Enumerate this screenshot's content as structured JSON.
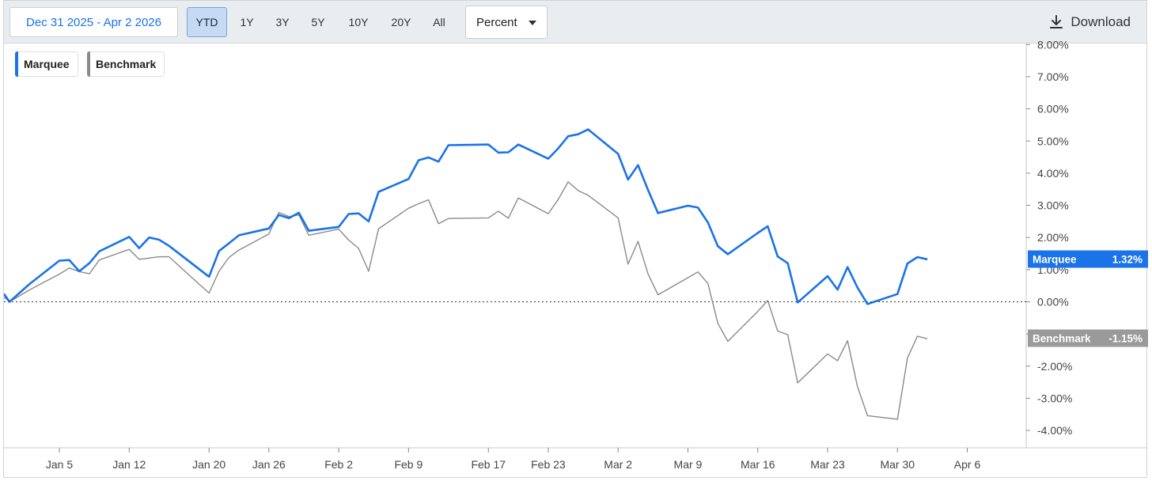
{
  "toolbar": {
    "date_range": "Dec 31 2025 - Apr 2 2026",
    "ranges": [
      "YTD",
      "1Y",
      "3Y",
      "5Y",
      "10Y",
      "20Y",
      "All"
    ],
    "active_range": "YTD",
    "mode": "Percent",
    "download_label": "Download"
  },
  "legend": {
    "items": [
      "Marquee",
      "Benchmark"
    ]
  },
  "colors": {
    "marquee": "#1a73e8",
    "benchmark": "#8a8a8a",
    "zero_line": "#333333"
  },
  "icons": [
    "download-icon",
    "caret-down-icon"
  ],
  "chart_data": {
    "type": "line",
    "title": "",
    "xlabel": "",
    "ylabel": "",
    "ylim": [
      -4.5,
      8.0
    ],
    "y_ticks": [
      -4,
      -3,
      -2,
      -1,
      0,
      1,
      2,
      3,
      4,
      5,
      6,
      7,
      8
    ],
    "y_tick_labels": [
      "-4.00%",
      "-3.00%",
      "-2.00%",
      "-1.00%",
      "0.00%",
      "1.00%",
      "2.00%",
      "3.00%",
      "4.00%",
      "5.00%",
      "6.00%",
      "7.00%",
      "8.00%"
    ],
    "x_ticks": [
      "2026-01-05",
      "2026-01-12",
      "2026-01-20",
      "2026-01-26",
      "2026-02-02",
      "2026-02-09",
      "2026-02-17",
      "2026-02-23",
      "2026-03-02",
      "2026-03-09",
      "2026-03-16",
      "2026-03-23",
      "2026-03-30",
      "2026-04-06"
    ],
    "x_tick_labels": [
      "Jan 5",
      "Jan 12",
      "Jan 20",
      "Jan 26",
      "Feb 2",
      "Feb 9",
      "Feb 17",
      "Feb 23",
      "Mar 2",
      "Mar 9",
      "Mar 16",
      "Mar 23",
      "Mar 30",
      "Apr 6"
    ],
    "zero_line": true,
    "legend_position": "top-left",
    "x": [
      "2025-12-31",
      "2026-01-02",
      "2026-01-05",
      "2026-01-06",
      "2026-01-07",
      "2026-01-08",
      "2026-01-09",
      "2026-01-12",
      "2026-01-13",
      "2026-01-14",
      "2026-01-15",
      "2026-01-16",
      "2026-01-20",
      "2026-01-21",
      "2026-01-22",
      "2026-01-23",
      "2026-01-26",
      "2026-01-27",
      "2026-01-28",
      "2026-01-29",
      "2026-01-30",
      "2026-02-02",
      "2026-02-03",
      "2026-02-04",
      "2026-02-05",
      "2026-02-06",
      "2026-02-09",
      "2026-02-10",
      "2026-02-11",
      "2026-02-12",
      "2026-02-13",
      "2026-02-17",
      "2026-02-18",
      "2026-02-19",
      "2026-02-20",
      "2026-02-23",
      "2026-02-24",
      "2026-02-25",
      "2026-02-26",
      "2026-02-27",
      "2026-03-02",
      "2026-03-03",
      "2026-03-04",
      "2026-03-05",
      "2026-03-06",
      "2026-03-09",
      "2026-03-10",
      "2026-03-11",
      "2026-03-12",
      "2026-03-13",
      "2026-03-16",
      "2026-03-17",
      "2026-03-18",
      "2026-03-19",
      "2026-03-20",
      "2026-03-23",
      "2026-03-24",
      "2026-03-25",
      "2026-03-26",
      "2026-03-27",
      "2026-03-30",
      "2026-03-31",
      "2026-04-01",
      "2026-04-02"
    ],
    "series": [
      {
        "name": "Marquee",
        "values": [
          0.0,
          0.55,
          1.28,
          1.3,
          0.95,
          1.2,
          1.57,
          2.02,
          1.67,
          2.0,
          1.93,
          1.74,
          0.78,
          1.58,
          1.82,
          2.07,
          2.28,
          2.7,
          2.6,
          2.77,
          2.21,
          2.33,
          2.73,
          2.75,
          2.5,
          3.42,
          3.82,
          4.4,
          4.49,
          4.36,
          4.87,
          4.89,
          4.64,
          4.65,
          4.89,
          4.45,
          4.77,
          5.15,
          5.21,
          5.36,
          4.6,
          3.8,
          4.25,
          3.48,
          2.76,
          2.99,
          2.93,
          2.47,
          1.73,
          1.48,
          2.14,
          2.35,
          1.41,
          1.2,
          -0.02,
          0.8,
          0.38,
          1.08,
          0.44,
          -0.07,
          0.24,
          1.19,
          1.39,
          1.32
        ],
        "last_label": "1.32%"
      },
      {
        "name": "Benchmark",
        "values": [
          0.0,
          0.37,
          0.86,
          1.05,
          0.94,
          0.87,
          1.3,
          1.63,
          1.32,
          1.36,
          1.4,
          1.4,
          0.27,
          0.95,
          1.38,
          1.61,
          2.11,
          2.78,
          2.65,
          2.7,
          2.07,
          2.26,
          1.92,
          1.66,
          0.95,
          2.27,
          2.91,
          3.05,
          3.17,
          2.43,
          2.59,
          2.61,
          2.82,
          2.6,
          3.23,
          2.74,
          3.18,
          3.73,
          3.46,
          3.31,
          2.61,
          1.17,
          1.88,
          0.87,
          0.22,
          0.75,
          0.93,
          0.57,
          -0.67,
          -1.23,
          -0.3,
          0.04,
          -0.91,
          -1.02,
          -2.52,
          -1.62,
          -1.83,
          -1.21,
          -2.64,
          -3.54,
          -3.65,
          -1.75,
          -1.07,
          -1.15
        ],
        "last_label": "-1.15%"
      }
    ]
  }
}
